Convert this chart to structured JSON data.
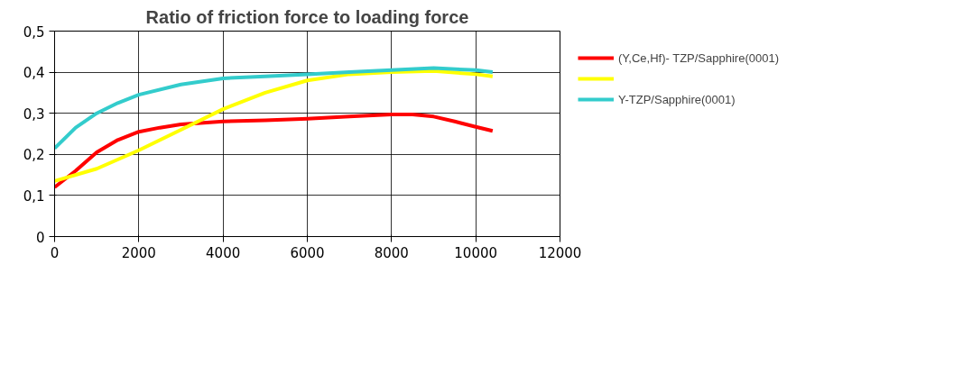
{
  "chart_data": {
    "type": "line",
    "title": "Ratio of friction force to loading force",
    "xlim": [
      0,
      12000
    ],
    "xticks": [
      0,
      2000,
      4000,
      6000,
      8000,
      10000,
      12000
    ],
    "ylim": [
      0,
      0.5
    ],
    "yticks": [
      0,
      {
        "value": 0.1,
        "label": "0,1"
      },
      {
        "value": 0.2,
        "label": "0,2"
      },
      {
        "value": 0.3,
        "label": "0,3"
      },
      {
        "value": 0.4,
        "label": "0,4"
      },
      {
        "value": 0.5,
        "label": "0,5"
      }
    ],
    "grid": true,
    "legend": "right",
    "marker": "none",
    "line_style": "solid",
    "series": [
      {
        "name": "(Y,Ce,Hf)- TZP/Sapphire(0001)",
        "color": "#ff0000",
        "x": [
          0,
          500,
          1000,
          1500,
          2000,
          2500,
          3000,
          4000,
          5000,
          6000,
          7000,
          8000,
          8500,
          9000,
          9500,
          10000,
          10400
        ],
        "values": [
          0.12,
          0.16,
          0.205,
          0.235,
          0.255,
          0.265,
          0.273,
          0.28,
          0.283,
          0.287,
          0.292,
          0.297,
          0.297,
          0.292,
          0.28,
          0.267,
          0.257
        ]
      },
      {
        "color": "#ffff00",
        "x": [
          0,
          1000,
          2000,
          3000,
          4000,
          5000,
          6000,
          7000,
          8000,
          9000,
          10000,
          10400
        ],
        "values": [
          0.135,
          0.165,
          0.21,
          0.26,
          0.31,
          0.35,
          0.38,
          0.395,
          0.4,
          0.403,
          0.395,
          0.39
        ]
      },
      {
        "name": "Y-TZP/Sapphire(0001)",
        "color": "#33cccc",
        "x": [
          0,
          500,
          1000,
          1500,
          2000,
          3000,
          4000,
          5000,
          6000,
          7000,
          8000,
          9000,
          10000,
          10400
        ],
        "values": [
          0.215,
          0.265,
          0.3,
          0.325,
          0.345,
          0.37,
          0.385,
          0.39,
          0.395,
          0.4,
          0.405,
          0.41,
          0.405,
          0.4
        ]
      }
    ]
  }
}
